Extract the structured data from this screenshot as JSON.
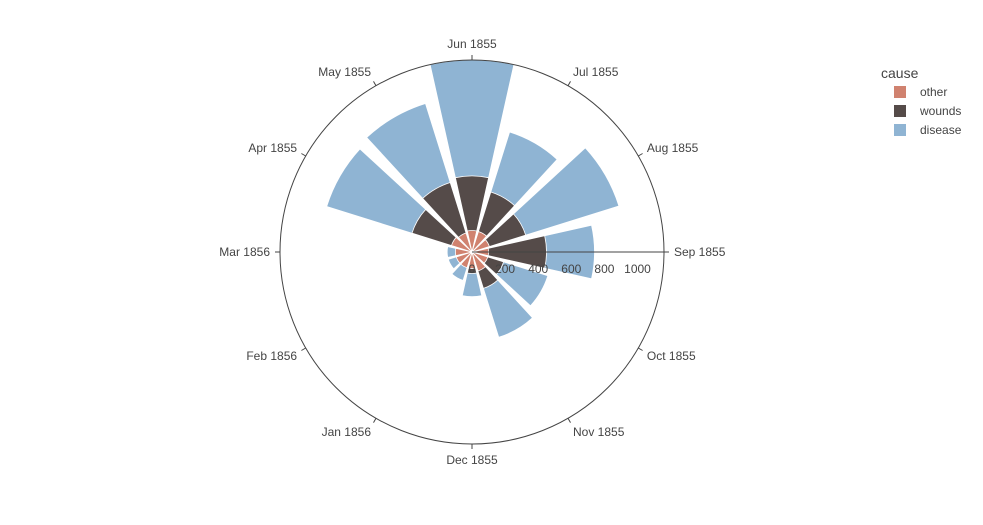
{
  "chart_data": {
    "type": "barpolar",
    "title": "",
    "angular_axis": {
      "direction": "clockwise",
      "start": "Sep 1855 at 0 degrees (3 o'clock)",
      "categories": [
        "Sep 1855",
        "Oct 1855",
        "Nov 1855",
        "Dec 1855",
        "Jan 1856",
        "Feb 1856",
        "Mar 1856",
        "Apr 1855",
        "May 1855",
        "Jun 1855",
        "Jul 1855",
        "Aug 1855"
      ]
    },
    "radial_axis": {
      "range": [
        0,
        1160
      ],
      "tick_values": [
        0,
        200,
        400,
        600,
        800,
        1000
      ],
      "tick_labels": [
        "0",
        "200",
        "400",
        "600",
        "800",
        "1000"
      ]
    },
    "legend": {
      "title": "cause",
      "placement": "top-right"
    },
    "series": [
      {
        "name": "disease",
        "color": "#8fb4d3",
        "values": [
          740,
          480,
          540,
          270,
          180,
          150,
          150,
          920,
          940,
          1190,
          760,
          930
        ]
      },
      {
        "name": "wounds",
        "color": "#554b49",
        "values": [
          450,
          200,
          230,
          130,
          50,
          50,
          40,
          380,
          440,
          460,
          380,
          340
        ]
      },
      {
        "name": "other",
        "color": "#d0826f",
        "values": [
          100,
          100,
          120,
          100,
          100,
          100,
          100,
          130,
          120,
          130,
          130,
          110
        ]
      }
    ]
  }
}
